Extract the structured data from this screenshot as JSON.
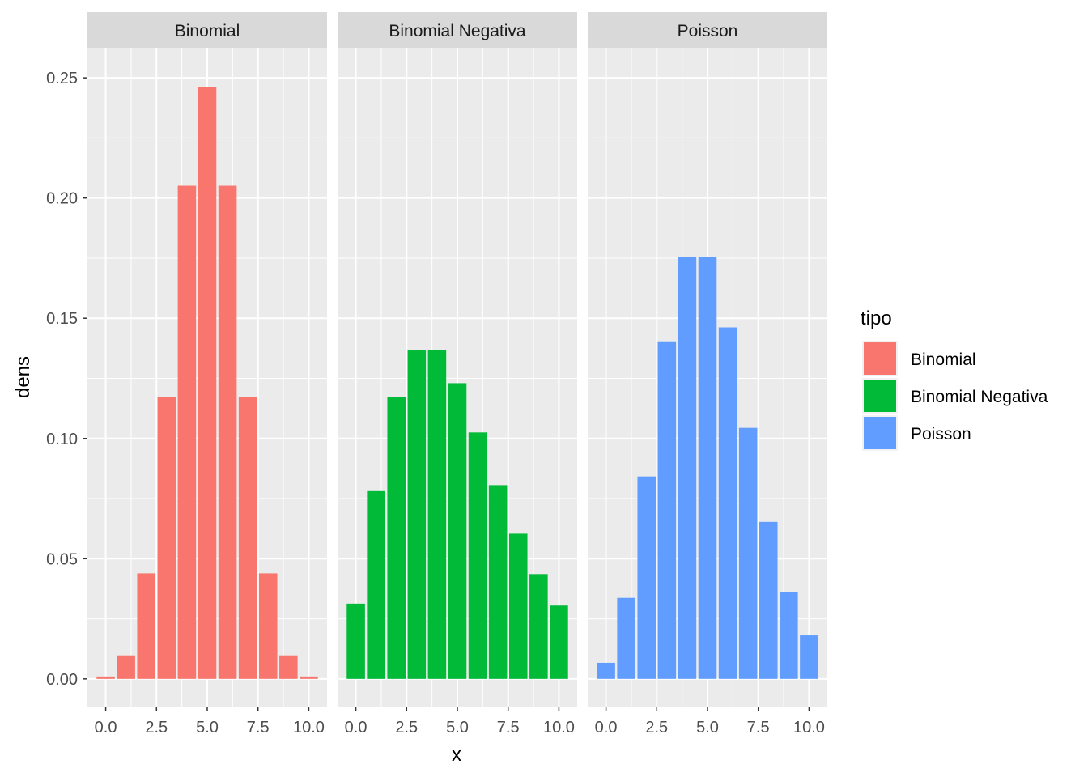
{
  "chart_data": {
    "type": "bar",
    "facet_by": "tipo",
    "xlabel": "x",
    "ylabel": "dens",
    "x": [
      0,
      1,
      2,
      3,
      4,
      5,
      6,
      7,
      8,
      9,
      10
    ],
    "xlim": [
      -0.9,
      10.9
    ],
    "ylim": [
      -0.0115,
      0.2625
    ],
    "x_ticks": [
      0,
      2.5,
      5,
      7.5,
      10
    ],
    "x_tick_labels": [
      "0.0",
      "2.5",
      "5.0",
      "7.5",
      "10.0"
    ],
    "y_ticks": [
      0,
      0.05,
      0.1,
      0.15,
      0.2,
      0.25
    ],
    "y_tick_labels": [
      "0.00",
      "0.05",
      "0.10",
      "0.15",
      "0.20",
      "0.25"
    ],
    "grid": true,
    "legend_placement": "right",
    "legend_title": "tipo",
    "series": [
      {
        "name": "Binomial",
        "color": "#F8766D",
        "values": [
          0.001,
          0.0098,
          0.0439,
          0.1172,
          0.2051,
          0.2461,
          0.2051,
          0.1172,
          0.0439,
          0.0098,
          0.001
        ]
      },
      {
        "name": "Binomial Negativa",
        "color": "#00BA38",
        "values": [
          0.0313,
          0.0781,
          0.1172,
          0.1367,
          0.1367,
          0.123,
          0.1025,
          0.0806,
          0.0604,
          0.0436,
          0.0305
        ]
      },
      {
        "name": "Poisson",
        "color": "#619CFF",
        "values": [
          0.0067,
          0.0337,
          0.0842,
          0.1404,
          0.1755,
          0.1755,
          0.1462,
          0.1044,
          0.0653,
          0.0363,
          0.0181
        ]
      }
    ]
  }
}
